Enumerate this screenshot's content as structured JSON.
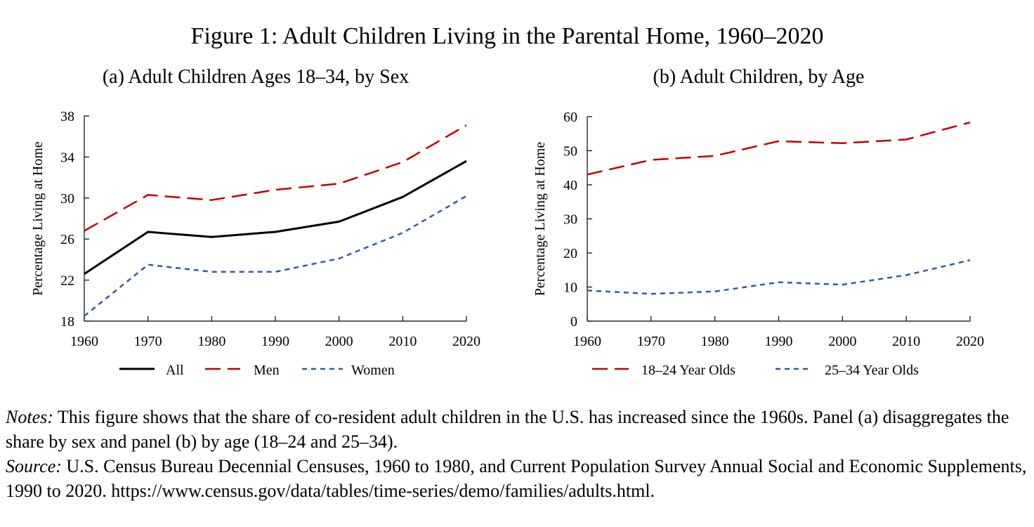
{
  "figure": {
    "title": "Figure 1: Adult Children Living in the Parental Home, 1960–2020"
  },
  "chart_data": [
    {
      "type": "line",
      "title": "(a) Adult Children Ages 18–34, by Sex",
      "xlabel": "",
      "ylabel": "Percentage Living at Home",
      "x": [
        1960,
        1970,
        1980,
        1990,
        2000,
        2010,
        2020
      ],
      "xticks": [
        "1960",
        "1970",
        "1980",
        "1990",
        "2000",
        "2010",
        "2020"
      ],
      "yticks": [
        "18",
        "22",
        "26",
        "30",
        "34",
        "38"
      ],
      "xlim": [
        1960,
        2020
      ],
      "ylim": [
        18,
        38
      ],
      "grid": false,
      "legend_position": "bottom",
      "series": [
        {
          "name": "All",
          "color": "#000000",
          "style": "solid",
          "values": [
            22.6,
            26.7,
            26.2,
            26.7,
            27.7,
            30.1,
            33.6
          ]
        },
        {
          "name": "Men",
          "color": "#c00000",
          "style": "long-dash",
          "values": [
            26.8,
            30.3,
            29.8,
            30.8,
            31.4,
            33.5,
            37.1
          ]
        },
        {
          "name": "Women",
          "color": "#2e5aa8",
          "style": "short-dash",
          "values": [
            18.5,
            23.5,
            22.8,
            22.8,
            24.1,
            26.6,
            30.2
          ]
        }
      ]
    },
    {
      "type": "line",
      "title": "(b) Adult Children, by Age",
      "xlabel": "",
      "ylabel": "Percentage Living at Home",
      "x": [
        1960,
        1970,
        1980,
        1990,
        2000,
        2010,
        2020
      ],
      "xticks": [
        "1960",
        "1970",
        "1980",
        "1990",
        "2000",
        "2010",
        "2020"
      ],
      "yticks": [
        "0",
        "10",
        "20",
        "30",
        "40",
        "50",
        "60"
      ],
      "xlim": [
        1960,
        2020
      ],
      "ylim": [
        0,
        60
      ],
      "grid": false,
      "legend_position": "bottom",
      "series": [
        {
          "name": "18–24 Year Olds",
          "color": "#c00000",
          "style": "long-dash",
          "values": [
            43.0,
            47.3,
            48.5,
            52.8,
            52.2,
            53.3,
            58.3
          ]
        },
        {
          "name": "25–34 Year Olds",
          "color": "#2e5aa8",
          "style": "short-dash",
          "values": [
            9.0,
            8.0,
            8.7,
            11.4,
            10.7,
            13.5,
            17.9
          ]
        }
      ]
    }
  ],
  "notes": {
    "notes_label": "Notes:",
    "notes_text": " This figure shows that the share of co-resident adult children in the U.S. has increased since the 1960s. Panel (a) disaggregates the share by sex and panel (b) by age (18–24 and 25–34).",
    "source_label": "Source:",
    "source_text": " U.S. Census Bureau Decennial Censuses, 1960 to 1980, and Current Population Survey Annual Social and Economic Supplements, 1990 to 2020. https://www.census.gov/data/tables/time-series/demo/families/adults.html."
  }
}
